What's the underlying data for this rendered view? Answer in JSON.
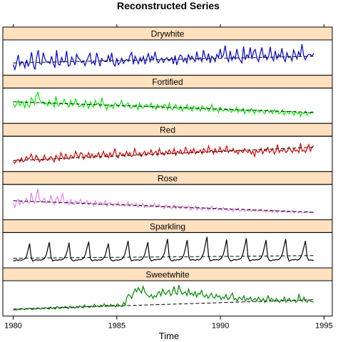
{
  "chart_data": {
    "type": "line",
    "title": "Reconstructed Series",
    "xlabel": "Time",
    "x_ticks": [
      1980,
      1985,
      1990,
      1995
    ],
    "x_start": 1980.0,
    "x_end": 1994.5,
    "x_step_months": 1,
    "panels": [
      {
        "name": "Drywhite",
        "color": "#0000cc",
        "values": [
          0.24,
          0.05,
          0.3,
          0.6,
          0.2,
          0.35,
          0.32,
          0.12,
          0.42,
          0.18,
          0.34,
          0.7,
          0.25,
          0.05,
          0.5,
          0.78,
          0.27,
          0.25,
          0.68,
          0.45,
          0.33,
          0.35,
          0.28,
          0.55,
          0.28,
          0.12,
          0.78,
          0.25,
          0.22,
          0.5,
          0.33,
          0.35,
          0.75,
          0.18,
          0.22,
          0.52,
          0.4,
          0.22,
          0.62,
          0.48,
          0.42,
          0.31,
          0.38,
          0.2,
          0.38,
          0.52,
          0.66,
          0.28,
          0.35,
          0.23,
          0.68,
          0.45,
          0.18,
          0.46,
          0.38,
          0.35,
          0.35,
          0.58,
          0.34,
          0.68,
          0.28,
          0.18,
          0.48,
          0.23,
          0.32,
          0.48,
          0.28,
          0.38,
          0.43,
          0.36,
          0.58,
          0.69,
          0.25,
          0.55,
          0.42,
          0.27,
          0.5,
          0.35,
          0.54,
          0.25,
          0.48,
          0.65,
          0.35,
          0.55,
          0.42,
          0.72,
          0.4,
          0.3,
          0.42,
          0.48,
          0.32,
          0.42,
          0.5,
          0.38,
          0.4,
          0.5,
          0.26,
          0.58,
          0.22,
          0.45,
          0.6,
          0.55,
          0.35,
          0.48,
          0.3,
          0.62,
          0.42,
          0.55,
          0.45,
          0.35,
          0.72,
          0.42,
          0.5,
          0.35,
          0.78,
          0.52,
          0.4,
          0.65,
          0.3,
          0.55,
          0.48,
          0.35,
          0.62,
          0.5,
          0.82,
          0.5,
          0.6,
          0.95,
          0.52,
          0.35,
          0.75,
          0.4,
          0.55,
          0.45,
          0.82,
          0.52,
          0.4,
          0.3,
          0.92,
          0.42,
          0.6,
          0.52,
          0.88,
          0.45,
          0.72,
          0.8,
          0.48,
          0.35,
          0.65,
          0.88,
          0.5,
          0.6,
          0.42,
          0.55,
          0.9,
          0.5,
          0.38,
          0.75,
          0.45,
          0.62,
          0.52,
          0.85,
          0.48,
          0.35,
          0.68,
          0.5,
          0.55,
          0.38,
          0.78,
          0.62,
          0.45,
          0.72,
          0.55,
          1.0,
          0.58,
          0.42,
          0.55,
          0.62,
          0.62,
          0.55,
          0.65
        ],
        "trend": [
          0.3,
          0.55
        ]
      },
      {
        "name": "Fortified",
        "color": "#00ee00",
        "values": [
          0.6,
          0.45,
          0.55,
          0.7,
          0.5,
          0.6,
          0.65,
          0.4,
          0.7,
          0.5,
          0.45,
          0.8,
          0.7,
          0.55,
          0.9,
          1.0,
          0.75,
          0.6,
          0.65,
          0.55,
          0.6,
          0.5,
          0.7,
          0.55,
          0.6,
          0.45,
          0.85,
          0.55,
          0.5,
          0.6,
          0.55,
          0.75,
          0.6,
          0.55,
          0.45,
          0.7,
          0.5,
          0.55,
          0.75,
          0.6,
          0.45,
          0.5,
          0.55,
          0.45,
          0.7,
          0.55,
          0.4,
          0.65,
          0.5,
          0.45,
          0.7,
          0.55,
          0.6,
          0.45,
          0.8,
          0.55,
          0.5,
          0.35,
          0.55,
          0.45,
          0.5,
          0.4,
          0.6,
          0.55,
          0.45,
          0.55,
          0.7,
          0.5,
          0.45,
          0.55,
          0.6,
          0.45,
          0.4,
          0.5,
          0.45,
          0.55,
          0.35,
          0.6,
          0.45,
          0.4,
          0.5,
          0.55,
          0.5,
          0.45,
          0.6,
          0.4,
          0.5,
          0.35,
          0.55,
          0.45,
          0.5,
          0.4,
          0.55,
          0.5,
          0.35,
          0.6,
          0.4,
          0.35,
          0.45,
          0.55,
          0.4,
          0.35,
          0.5,
          0.3,
          0.45,
          0.4,
          0.55,
          0.35,
          0.45,
          0.3,
          0.5,
          0.4,
          0.35,
          0.45,
          0.3,
          0.5,
          0.4,
          0.35,
          0.45,
          0.3,
          0.4,
          0.55,
          0.3,
          0.35,
          0.4,
          0.25,
          0.45,
          0.35,
          0.3,
          0.4,
          0.35,
          0.3,
          0.4,
          0.25,
          0.35,
          0.3,
          0.45,
          0.25,
          0.35,
          0.3,
          0.4,
          0.2,
          0.35,
          0.3,
          0.25,
          0.4,
          0.3,
          0.2,
          0.35,
          0.3,
          0.25,
          0.35,
          0.3,
          0.2,
          0.3,
          0.35,
          0.25,
          0.3,
          0.2,
          0.35,
          0.25,
          0.3,
          0.2,
          0.25,
          0.35,
          0.15,
          0.3,
          0.25,
          0.2,
          0.3,
          0.25,
          0.15,
          0.3,
          0.2,
          0.25,
          0.1,
          0.25,
          0.2,
          0.3,
          0.15,
          0.25,
          0.2,
          0.28,
          0.22
        ],
        "trend": [
          0.65,
          0.25
        ]
      },
      {
        "name": "Red",
        "color": "#dd0000",
        "values": [
          0.2,
          0.15,
          0.25,
          0.3,
          0.2,
          0.35,
          0.2,
          0.25,
          0.4,
          0.3,
          0.35,
          0.5,
          0.3,
          0.25,
          0.45,
          0.35,
          0.2,
          0.3,
          0.25,
          0.45,
          0.3,
          0.25,
          0.35,
          0.4,
          0.3,
          0.2,
          0.45,
          0.35,
          0.25,
          0.55,
          0.4,
          0.3,
          0.5,
          0.35,
          0.3,
          0.45,
          0.4,
          0.35,
          0.6,
          0.45,
          0.35,
          0.55,
          0.5,
          0.3,
          0.45,
          0.4,
          0.55,
          0.35,
          0.5,
          0.35,
          0.45,
          0.4,
          0.55,
          0.35,
          0.45,
          0.6,
          0.4,
          0.5,
          0.35,
          0.55,
          0.4,
          0.5,
          0.7,
          0.4,
          0.35,
          0.55,
          0.45,
          0.5,
          0.4,
          0.6,
          0.45,
          0.55,
          0.4,
          0.45,
          0.7,
          0.5,
          0.45,
          0.55,
          0.4,
          0.5,
          0.6,
          0.45,
          0.55,
          0.5,
          0.65,
          0.45,
          0.55,
          0.6,
          0.45,
          0.7,
          0.5,
          0.55,
          0.45,
          0.6,
          0.5,
          0.65,
          0.55,
          0.5,
          0.7,
          0.45,
          0.6,
          0.55,
          0.65,
          0.5,
          0.55,
          0.75,
          0.6,
          0.5,
          0.65,
          0.55,
          0.7,
          0.5,
          0.6,
          0.55,
          0.65,
          0.5,
          0.7,
          0.6,
          0.55,
          0.8,
          0.6,
          0.65,
          0.5,
          0.7,
          0.55,
          0.6,
          0.75,
          0.55,
          0.65,
          0.6,
          0.8,
          0.55,
          0.65,
          0.6,
          0.7,
          0.55,
          0.6,
          0.5,
          0.65,
          0.6,
          0.55,
          0.7,
          0.6,
          0.55,
          0.65,
          0.5,
          0.6,
          0.4,
          0.65,
          0.55,
          0.6,
          0.7,
          0.5,
          0.65,
          0.6,
          0.75,
          0.55,
          0.6,
          0.7,
          0.5,
          0.6,
          0.85,
          0.55,
          0.65,
          0.6,
          0.7,
          0.55,
          0.6,
          0.75,
          0.65,
          0.55,
          0.7,
          0.6,
          0.65,
          0.55,
          0.9,
          0.6,
          0.65,
          0.55,
          0.7,
          0.85,
          0.6,
          0.75,
          0.8
        ],
        "trend": [
          0.25,
          0.75
        ]
      },
      {
        "name": "Rose",
        "color": "#ee82ee",
        "values": [
          0.45,
          0.3,
          0.5,
          0.6,
          0.4,
          0.55,
          0.45,
          0.5,
          0.65,
          0.5,
          0.45,
          0.85,
          0.55,
          0.45,
          0.7,
          1.0,
          0.6,
          0.5,
          0.55,
          0.65,
          0.45,
          0.55,
          0.5,
          0.75,
          0.5,
          0.4,
          0.6,
          0.7,
          0.45,
          0.55,
          0.85,
          0.5,
          0.45,
          0.55,
          0.4,
          0.6,
          0.45,
          0.4,
          0.55,
          0.5,
          0.45,
          0.6,
          0.4,
          0.5,
          0.45,
          0.55,
          0.4,
          0.5,
          0.45,
          0.35,
          0.55,
          0.45,
          0.4,
          0.5,
          0.45,
          0.4,
          0.55,
          0.35,
          0.45,
          0.5,
          0.4,
          0.35,
          0.45,
          0.4,
          0.5,
          0.35,
          0.4,
          0.45,
          0.35,
          0.4,
          0.5,
          0.35,
          0.45,
          0.4,
          0.35,
          0.45,
          0.3,
          0.4,
          0.35,
          0.45,
          0.3,
          0.4,
          0.35,
          0.3,
          0.4,
          0.35,
          0.45,
          0.3,
          0.35,
          0.4,
          0.3,
          0.35,
          0.25,
          0.4,
          0.3,
          0.35,
          0.25,
          0.3,
          0.4,
          0.25,
          0.35,
          0.3,
          0.25,
          0.35,
          0.3,
          0.25,
          0.3,
          0.35,
          0.2,
          0.3,
          0.25,
          0.35,
          0.2,
          0.3,
          0.25,
          0.2,
          0.3,
          0.25,
          0.3,
          0.2,
          0.25,
          0.35,
          0.2,
          0.25,
          0.3,
          0.2,
          0.25,
          0.2,
          0.3,
          0.2,
          0.25,
          0.18,
          0.25,
          0.2,
          0.15,
          0.25,
          0.2,
          0.28,
          0.15,
          0.2,
          0.25,
          0.15,
          0.2,
          0.18,
          0.25,
          0.15,
          0.2,
          0.15,
          0.22,
          0.15,
          0.2,
          0.25,
          0.15,
          0.18,
          0.12,
          0.2,
          0.15,
          0.18,
          0.12,
          0.2,
          0.15,
          0.1,
          0.18,
          0.15,
          0.12,
          0.2,
          0.15,
          0.1,
          0.15,
          0.12,
          0.18,
          0.1,
          0.15,
          0.12,
          0.1,
          0.15,
          0.12,
          0.1,
          0.12,
          0.15,
          0.1,
          0.12,
          0.1,
          0.12
        ],
        "trend": [
          0.55,
          0.12
        ]
      },
      {
        "name": "Sparkling",
        "color": "#000000",
        "values": [
          0.12,
          0.1,
          0.15,
          0.12,
          0.14,
          0.12,
          0.15,
          0.18,
          0.25,
          0.5,
          0.75,
          0.2,
          0.1,
          0.12,
          0.15,
          0.12,
          0.14,
          0.13,
          0.15,
          0.2,
          0.3,
          0.55,
          0.8,
          0.25,
          0.1,
          0.12,
          0.14,
          0.12,
          0.15,
          0.13,
          0.16,
          0.2,
          0.3,
          0.5,
          0.78,
          0.2,
          0.12,
          0.1,
          0.14,
          0.12,
          0.16,
          0.14,
          0.17,
          0.22,
          0.35,
          0.6,
          0.82,
          0.2,
          0.1,
          0.12,
          0.15,
          0.12,
          0.14,
          0.13,
          0.15,
          0.2,
          0.3,
          0.55,
          0.75,
          0.2,
          0.12,
          0.1,
          0.13,
          0.14,
          0.12,
          0.15,
          0.16,
          0.22,
          0.35,
          0.6,
          0.85,
          0.25,
          0.1,
          0.12,
          0.14,
          0.13,
          0.15,
          0.12,
          0.15,
          0.2,
          0.32,
          0.55,
          0.8,
          0.22,
          0.1,
          0.12,
          0.15,
          0.14,
          0.16,
          0.15,
          0.17,
          0.25,
          0.38,
          0.65,
          0.92,
          0.25,
          0.12,
          0.1,
          0.14,
          0.13,
          0.15,
          0.14,
          0.16,
          0.22,
          0.35,
          0.6,
          0.88,
          0.25,
          0.12,
          0.15,
          0.14,
          0.12,
          0.16,
          0.13,
          0.17,
          0.25,
          0.4,
          0.7,
          1.0,
          0.28,
          0.1,
          0.12,
          0.15,
          0.14,
          0.15,
          0.13,
          0.16,
          0.22,
          0.35,
          0.6,
          0.9,
          0.25,
          0.12,
          0.1,
          0.14,
          0.15,
          0.13,
          0.16,
          0.17,
          0.22,
          0.38,
          0.65,
          0.95,
          0.25,
          0.1,
          0.12,
          0.15,
          0.13,
          0.15,
          0.14,
          0.16,
          0.22,
          0.35,
          0.62,
          0.88,
          0.25,
          0.12,
          0.1,
          0.14,
          0.13,
          0.15,
          0.14,
          0.16,
          0.24,
          0.38,
          0.65,
          0.92,
          0.28,
          0.1,
          0.12,
          0.15,
          0.14,
          0.16,
          0.13,
          0.15,
          0.22,
          0.36,
          0.6,
          0.85,
          0.25,
          0.12,
          0.14,
          0.13,
          0.12
        ],
        "trend": [
          0.2,
          0.3
        ]
      },
      {
        "name": "Sweetwhite",
        "color": "#008800",
        "values": [
          0.05,
          0.08,
          0.06,
          0.1,
          0.08,
          0.12,
          0.1,
          0.08,
          0.12,
          0.1,
          0.14,
          0.1,
          0.08,
          0.12,
          0.1,
          0.15,
          0.12,
          0.1,
          0.14,
          0.12,
          0.16,
          0.12,
          0.1,
          0.18,
          0.12,
          0.15,
          0.1,
          0.2,
          0.15,
          0.12,
          0.18,
          0.14,
          0.2,
          0.15,
          0.12,
          0.22,
          0.15,
          0.18,
          0.14,
          0.2,
          0.16,
          0.22,
          0.18,
          0.15,
          0.25,
          0.18,
          0.2,
          0.16,
          0.22,
          0.18,
          0.28,
          0.2,
          0.22,
          0.18,
          0.25,
          0.2,
          0.3,
          0.22,
          0.25,
          0.2,
          0.28,
          0.22,
          0.25,
          0.18,
          0.3,
          0.25,
          0.22,
          0.2,
          0.35,
          0.25,
          0.55,
          0.65,
          0.6,
          0.5,
          0.7,
          0.85,
          0.75,
          0.9,
          0.8,
          0.7,
          0.95,
          0.75,
          0.65,
          0.6,
          0.55,
          0.65,
          0.5,
          0.6,
          0.55,
          0.7,
          0.75,
          0.6,
          0.85,
          0.7,
          0.65,
          0.75,
          0.8,
          0.6,
          0.7,
          0.95,
          0.7,
          0.65,
          1.0,
          0.8,
          0.65,
          0.7,
          0.75,
          0.6,
          0.85,
          0.65,
          0.7,
          0.6,
          0.75,
          0.55,
          0.7,
          0.65,
          0.8,
          0.6,
          0.55,
          0.65,
          0.5,
          0.6,
          0.7,
          0.55,
          0.5,
          0.65,
          0.55,
          0.6,
          0.45,
          0.55,
          0.5,
          0.65,
          0.45,
          0.5,
          0.6,
          0.7,
          0.45,
          0.5,
          0.4,
          0.55,
          0.5,
          0.45,
          0.6,
          0.4,
          0.5,
          0.45,
          0.55,
          0.4,
          0.45,
          0.5,
          0.4,
          0.55,
          0.45,
          0.4,
          0.5,
          0.35,
          0.45,
          0.6,
          0.4,
          0.5,
          0.45,
          0.38,
          0.5,
          0.42,
          0.35,
          0.45,
          0.4,
          0.55,
          0.35,
          0.45,
          0.5,
          0.38,
          0.42,
          0.45,
          0.35,
          0.4,
          0.65,
          0.45,
          0.38,
          0.55,
          0.4,
          0.35,
          0.45,
          0.4,
          0.38,
          0.35
        ],
        "trend": [
          0.1,
          0.45
        ]
      }
    ]
  }
}
